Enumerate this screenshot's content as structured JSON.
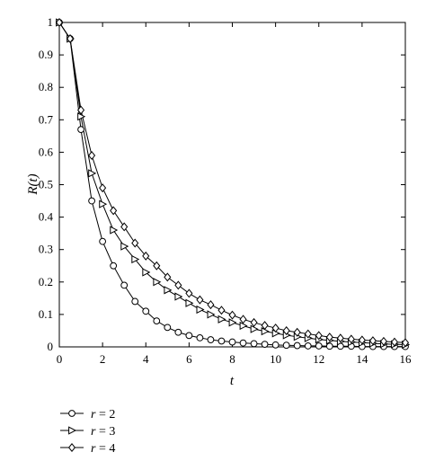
{
  "chart_data": {
    "type": "line",
    "title": "",
    "xlabel": "t",
    "ylabel": "R(t)",
    "xlim": [
      0,
      16
    ],
    "ylim": [
      0,
      1
    ],
    "xticks": [
      0,
      2,
      4,
      6,
      8,
      10,
      12,
      14,
      16
    ],
    "yticks": [
      0,
      0.1,
      0.2,
      0.3,
      0.4,
      0.5,
      0.6,
      0.7,
      0.8,
      0.9,
      1
    ],
    "xtick_labels": [
      "0",
      "2",
      "4",
      "6",
      "8",
      "10",
      "12",
      "14",
      "16"
    ],
    "ytick_labels": [
      "0",
      "0.1",
      "0.2",
      "0.3",
      "0.4",
      "0.5",
      "0.6",
      "0.7",
      "0.8",
      "0.9",
      "1"
    ],
    "grid": false,
    "legend_position": "bottom-left, below plot",
    "x": [
      0,
      0.5,
      1,
      1.5,
      2,
      2.5,
      3,
      3.5,
      4,
      4.5,
      5,
      5.5,
      6,
      6.5,
      7,
      7.5,
      8,
      8.5,
      9,
      9.5,
      10,
      10.5,
      11,
      11.5,
      12,
      12.5,
      13,
      13.5,
      14,
      14.5,
      15,
      15.5,
      16
    ],
    "series": [
      {
        "name": "r = 2",
        "marker": "circle",
        "values": [
          1.0,
          0.95,
          0.67,
          0.45,
          0.325,
          0.25,
          0.19,
          0.14,
          0.11,
          0.08,
          0.06,
          0.045,
          0.035,
          0.028,
          0.022,
          0.018,
          0.015,
          0.012,
          0.01,
          0.008,
          0.006,
          0.005,
          0.004,
          0.003,
          0.003,
          0.002,
          0.002,
          0.002,
          0.001,
          0.001,
          0.001,
          0.001,
          0.001
        ]
      },
      {
        "name": "r = 3",
        "marker": "triangle-right",
        "values": [
          1.0,
          0.95,
          0.71,
          0.535,
          0.44,
          0.36,
          0.31,
          0.27,
          0.23,
          0.2,
          0.175,
          0.155,
          0.135,
          0.115,
          0.1,
          0.085,
          0.075,
          0.065,
          0.055,
          0.048,
          0.042,
          0.036,
          0.031,
          0.027,
          0.023,
          0.02,
          0.017,
          0.015,
          0.013,
          0.011,
          0.009,
          0.008,
          0.007
        ]
      },
      {
        "name": "r = 4",
        "marker": "diamond",
        "values": [
          1.0,
          0.95,
          0.73,
          0.59,
          0.49,
          0.42,
          0.37,
          0.32,
          0.28,
          0.25,
          0.215,
          0.19,
          0.165,
          0.145,
          0.13,
          0.113,
          0.098,
          0.085,
          0.075,
          0.066,
          0.058,
          0.05,
          0.045,
          0.04,
          0.035,
          0.03,
          0.027,
          0.024,
          0.021,
          0.019,
          0.017,
          0.015,
          0.013
        ]
      }
    ]
  }
}
